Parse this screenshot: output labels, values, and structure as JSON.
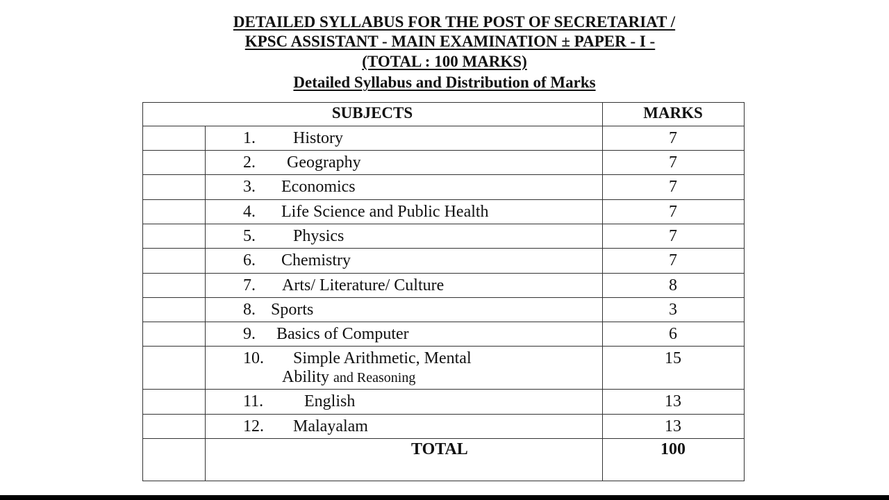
{
  "title": {
    "line1": "DETAILED SYLLABUS  FOR THE POST  OF SECRETARIAT /",
    "line2": "KPSC ASSISTANT -  MAIN EXAMINATION ± PAPER -  I  -",
    "line3": "(TOTAL : 100 MARKS)",
    "subtitle": "Detailed Syllabus and Distribution of Marks"
  },
  "table": {
    "headers": {
      "subjects": "SUBJECTS",
      "marks": "MARKS"
    },
    "rows": [
      {
        "num": "1.",
        "subject": "History",
        "marks": "7"
      },
      {
        "num": "2.",
        "subject": "Geography",
        "marks": "7"
      },
      {
        "num": "3.",
        "subject": "Economics",
        "marks": "7"
      },
      {
        "num": "4.",
        "subject": "Life Science and Public Health",
        "marks": "7"
      },
      {
        "num": "5.",
        "subject": "Physics",
        "marks": "7"
      },
      {
        "num": "6.",
        "subject": "Chemistry",
        "marks": "7"
      },
      {
        "num": "7.",
        "subject": "Arts/ Literature/ Culture",
        "marks": "8"
      },
      {
        "num": "8.",
        "subject": "Sports",
        "marks": "3"
      },
      {
        "num": "9.",
        "subject": "Basics of Computer",
        "marks": "6"
      },
      {
        "num": "10.",
        "subject": "Simple Arithmetic, Mental",
        "subject_line2a": "Ability",
        "subject_line2b": "and Reasoning",
        "marks": "15"
      },
      {
        "num": "11.",
        "subject": "English",
        "marks": "13"
      },
      {
        "num": "12.",
        "subject": "Malayalam",
        "marks": "13"
      }
    ],
    "total": {
      "label": "TOTAL",
      "marks": "100"
    }
  }
}
